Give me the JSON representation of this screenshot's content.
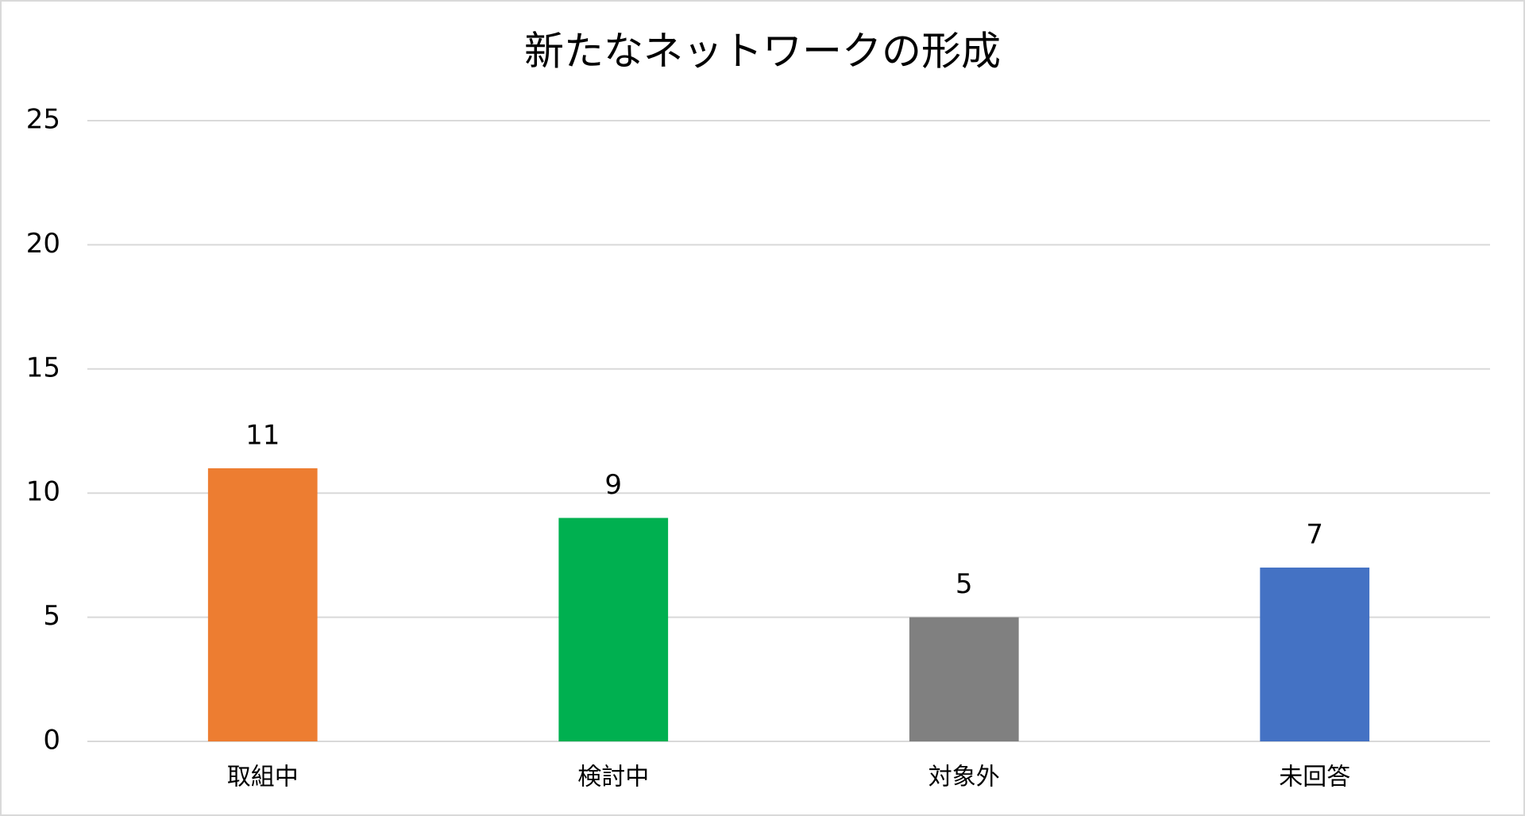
{
  "chart_data": {
    "type": "bar",
    "title": "新たなネットワークの形成",
    "categories": [
      "取組中",
      "検討中",
      "対象外",
      "未回答"
    ],
    "values": [
      11,
      9,
      5,
      7
    ],
    "colors": [
      "#ED7D31",
      "#00B050",
      "#808080",
      "#4472C4"
    ],
    "ylim": [
      0,
      25
    ],
    "yticks": [
      0,
      5,
      10,
      15,
      20,
      25
    ],
    "grid": true,
    "data_labels": true
  }
}
